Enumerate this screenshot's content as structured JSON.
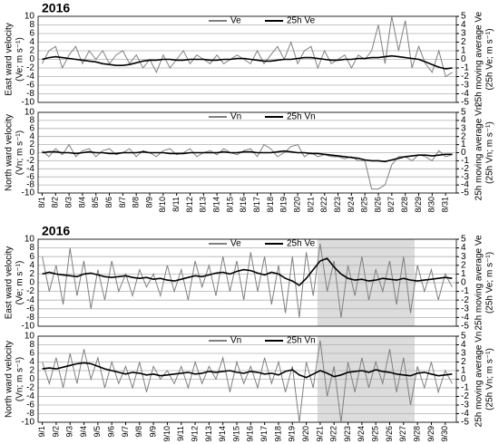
{
  "chart_data": [
    {
      "type": "line",
      "title": "2016",
      "legend": "top",
      "grid": true,
      "y_label": [
        "East ward velocity",
        "(Ve; m s⁻¹)"
      ],
      "y2_label": [
        "25h moving average Ve",
        "(25h Ve; m s⁻¹)"
      ],
      "x": [
        1,
        1.5,
        2,
        2.5,
        3,
        3.5,
        4,
        4.5,
        5,
        5.5,
        6,
        6.5,
        7,
        7.5,
        8,
        8.5,
        9,
        9.5,
        10,
        10.5,
        11,
        11.5,
        12,
        12.5,
        13,
        13.5,
        14,
        14.5,
        15,
        15.5,
        16,
        16.5,
        17,
        17.5,
        18,
        18.5,
        19,
        19.5,
        20,
        20.5,
        21,
        21.5,
        22,
        22.5,
        23,
        23.5,
        24,
        24.5,
        25,
        25.5,
        26,
        26.5,
        27,
        27.5,
        28,
        28.5,
        29,
        29.5,
        30,
        30.5,
        31,
        31.5
      ],
      "xlim": [
        0.7,
        31.8
      ],
      "ylim": [
        -10,
        10
      ],
      "yticks": [
        -10,
        -8,
        -6,
        -4,
        -2,
        0,
        2,
        4,
        6,
        8,
        10
      ],
      "y2lim": [
        -5,
        5
      ],
      "y2ticks": [
        -5,
        -4,
        -3,
        -2,
        -1,
        0,
        1,
        2,
        3,
        4,
        5
      ],
      "series": [
        {
          "name": "Ve",
          "color": "#808080",
          "values": [
            -1,
            2,
            3,
            -2,
            1,
            3,
            -1,
            2,
            0,
            2,
            -1,
            1,
            2,
            -1,
            1,
            -2,
            0,
            -3,
            1,
            -2,
            0,
            2,
            -1,
            1,
            0,
            -1,
            1,
            -1,
            0,
            1,
            0,
            -1,
            2,
            -1,
            1,
            3,
            0,
            4,
            -1,
            2,
            3,
            -2,
            2,
            -1,
            0,
            1,
            -2,
            1,
            0,
            2,
            8,
            -1,
            10,
            2,
            9,
            -2,
            3,
            -1,
            -3,
            2,
            -4,
            -3
          ]
        },
        {
          "name": "25h Ve",
          "color": "#000000",
          "axis": "y2",
          "values": [
            0,
            0.2,
            0.3,
            0.2,
            0.1,
            0,
            -0.1,
            -0.2,
            -0.3,
            -0.5,
            -0.6,
            -0.7,
            -0.7,
            -0.6,
            -0.4,
            -0.2,
            -0.1,
            -0.1,
            0,
            0,
            -0.1,
            -0.1,
            0,
            0,
            0,
            -0.1,
            -0.1,
            0,
            0,
            0.1,
            0.1,
            0,
            -0.1,
            -0.2,
            -0.2,
            -0.1,
            0,
            0,
            0.1,
            0.2,
            0.2,
            0.1,
            0,
            -0.1,
            -0.1,
            0,
            0,
            0.1,
            0.1,
            0.2,
            0.2,
            0.3,
            0.4,
            0.3,
            0.2,
            0.1,
            0,
            -0.3,
            -0.6,
            -0.9,
            -1.1,
            -1.0
          ]
        }
      ]
    },
    {
      "type": "line",
      "legend": "top",
      "grid": true,
      "y_label": [
        "North ward velocity",
        "(Vn; m s⁻¹)"
      ],
      "y2_label": [
        "25h moving average Vn",
        "(25h Vn; m s⁻¹)"
      ],
      "x": [
        1,
        1.5,
        2,
        2.5,
        3,
        3.5,
        4,
        4.5,
        5,
        5.5,
        6,
        6.5,
        7,
        7.5,
        8,
        8.5,
        9,
        9.5,
        10,
        10.5,
        11,
        11.5,
        12,
        12.5,
        13,
        13.5,
        14,
        14.5,
        15,
        15.5,
        16,
        16.5,
        17,
        17.5,
        18,
        18.5,
        19,
        19.5,
        20,
        20.5,
        21,
        21.5,
        22,
        22.5,
        23,
        23.5,
        24,
        24.5,
        25,
        25.5,
        26,
        26.5,
        27,
        27.5,
        28,
        28.5,
        29,
        29.5,
        30,
        30.5,
        31,
        31.5
      ],
      "xlim": [
        0.7,
        31.8
      ],
      "ylim": [
        -10,
        10
      ],
      "yticks": [
        -10,
        -8,
        -6,
        -4,
        -2,
        0,
        2,
        4,
        6,
        8,
        10
      ],
      "y2lim": [
        -5,
        5
      ],
      "y2ticks": [
        -5,
        -4,
        -3,
        -2,
        -1,
        0,
        1,
        2,
        3,
        4,
        5
      ],
      "xticks": [
        {
          "value": 1,
          "label": "8/1"
        },
        {
          "value": 2,
          "label": "8/2"
        },
        {
          "value": 3,
          "label": "8/3"
        },
        {
          "value": 4,
          "label": "8/4"
        },
        {
          "value": 5,
          "label": "8/5"
        },
        {
          "value": 6,
          "label": "8/6"
        },
        {
          "value": 7,
          "label": "8/7"
        },
        {
          "value": 8,
          "label": "8/8"
        },
        {
          "value": 9,
          "label": "8/9"
        },
        {
          "value": 10,
          "label": "8/10"
        },
        {
          "value": 11,
          "label": "8/11"
        },
        {
          "value": 12,
          "label": "8/12"
        },
        {
          "value": 13,
          "label": "8/13"
        },
        {
          "value": 14,
          "label": "8/14"
        },
        {
          "value": 15,
          "label": "8/15"
        },
        {
          "value": 16,
          "label": "8/16"
        },
        {
          "value": 17,
          "label": "8/17"
        },
        {
          "value": 18,
          "label": "8/18"
        },
        {
          "value": 19,
          "label": "8/19"
        },
        {
          "value": 20,
          "label": "8/20"
        },
        {
          "value": 21,
          "label": "8/21"
        },
        {
          "value": 22,
          "label": "8/22"
        },
        {
          "value": 23,
          "label": "8/23"
        },
        {
          "value": 24,
          "label": "8/24"
        },
        {
          "value": 25,
          "label": "8/25"
        },
        {
          "value": 26,
          "label": "8/26"
        },
        {
          "value": 27,
          "label": "8/27"
        },
        {
          "value": 28,
          "label": "8/28"
        },
        {
          "value": 29,
          "label": "8/29"
        },
        {
          "value": 30,
          "label": "8/30"
        },
        {
          "value": 31,
          "label": "8/31"
        }
      ],
      "series": [
        {
          "name": "Vn",
          "color": "#808080",
          "values": [
            0.5,
            -1,
            1,
            -0.5,
            2,
            -1,
            0.5,
            1,
            -1,
            0.5,
            1,
            -0.5,
            0,
            1,
            -1,
            0.5,
            0,
            -1,
            0.5,
            1,
            -0.5,
            0,
            1,
            -1,
            0,
            0.5,
            -0.5,
            1,
            0,
            -0.5,
            0.5,
            1,
            -1,
            2,
            1,
            -1,
            0,
            1.5,
            2,
            -1,
            0,
            -1,
            -0.5,
            -1,
            -1,
            -1.5,
            -1,
            -2,
            -2,
            -9,
            -9,
            -8,
            -3,
            -1,
            -1,
            -2,
            -0.5,
            -1,
            -2,
            0.5,
            -1,
            -0.5
          ]
        },
        {
          "name": "25h Vn",
          "color": "#000000",
          "axis": "y2",
          "values": [
            0,
            0.1,
            0.1,
            0,
            0,
            -0.1,
            0,
            0.1,
            0,
            0,
            -0.1,
            -0.1,
            0,
            0,
            0,
            0.1,
            0,
            0,
            0,
            -0.1,
            -0.1,
            -0.1,
            0,
            0,
            0,
            0,
            0,
            0.1,
            0,
            0,
            0.1,
            0.1,
            0,
            0,
            0,
            0.1,
            0.2,
            0.1,
            0,
            0,
            -0.1,
            -0.1,
            -0.2,
            -0.3,
            -0.4,
            -0.5,
            -0.6,
            -0.7,
            -0.9,
            -1.0,
            -1.0,
            -1.1,
            -0.9,
            -0.7,
            -0.5,
            -0.4,
            -0.3,
            -0.3,
            -0.4,
            -0.3,
            -0.2,
            -0.2
          ]
        }
      ]
    },
    {
      "type": "line",
      "title": "2016",
      "legend": "top",
      "grid": true,
      "highlight": [
        20.8,
        27.8
      ],
      "y_label": [
        "East ward velocity",
        "(Ve; m s⁻¹)"
      ],
      "y2_label": [
        "25h moving average Ve",
        "(25h Ve; m s⁻¹)"
      ],
      "x": [
        1,
        1.5,
        2,
        2.5,
        3,
        3.5,
        4,
        4.5,
        5,
        5.5,
        6,
        6.5,
        7,
        7.5,
        8,
        8.5,
        9,
        9.5,
        10,
        10.5,
        11,
        11.5,
        12,
        12.5,
        13,
        13.5,
        14,
        14.5,
        15,
        15.5,
        16,
        16.5,
        17,
        17.5,
        18,
        18.5,
        19,
        19.5,
        20,
        20.5,
        21,
        21.5,
        22,
        22.5,
        23,
        23.5,
        24,
        24.5,
        25,
        25.5,
        26,
        26.5,
        27,
        27.5,
        28,
        28.5,
        29,
        29.5,
        30,
        30.5
      ],
      "xlim": [
        0.7,
        30.8
      ],
      "ylim": [
        -10,
        10
      ],
      "yticks": [
        -10,
        -8,
        -6,
        -4,
        -2,
        0,
        2,
        4,
        6,
        8,
        10
      ],
      "y2lim": [
        -5,
        5
      ],
      "y2ticks": [
        -5,
        -4,
        -3,
        -2,
        -1,
        0,
        1,
        2,
        3,
        4,
        5
      ],
      "series": [
        {
          "name": "Ve",
          "color": "#808080",
          "values": [
            6,
            -2,
            4,
            -5,
            8,
            -3,
            5,
            -6,
            3,
            -4,
            5,
            -2,
            2,
            -3,
            3,
            -1,
            2,
            -3,
            4,
            -2,
            3,
            -4,
            5,
            -1,
            4,
            -3,
            6,
            -2,
            5,
            -4,
            7,
            -2,
            6,
            -5,
            4,
            -7,
            6,
            -8,
            7,
            -3,
            9,
            -2,
            5,
            -8,
            4,
            -3,
            6,
            -4,
            3,
            -2,
            5,
            -5,
            6,
            -7,
            4,
            -2,
            3,
            -4,
            2,
            -1
          ]
        },
        {
          "name": "25h Ve",
          "color": "#000000",
          "axis": "y2",
          "values": [
            1.0,
            1.2,
            1.0,
            0.9,
            0.8,
            0.7,
            1.0,
            1.1,
            0.9,
            0.7,
            0.6,
            0.7,
            0.8,
            0.6,
            0.5,
            0.6,
            0.4,
            0.5,
            0.3,
            0.2,
            0.4,
            0.6,
            0.8,
            0.7,
            0.9,
            1.1,
            1.2,
            1.0,
            1.3,
            1.5,
            1.4,
            1.1,
            0.9,
            1.2,
            1.0,
            0.5,
            0.2,
            -0.3,
            0.5,
            1.5,
            2.5,
            2.8,
            1.8,
            1.0,
            0.5,
            0.3,
            0.4,
            0.2,
            0.3,
            0.5,
            0.4,
            0.3,
            0.5,
            0.3,
            0.2,
            0.3,
            0.4,
            0.5,
            0.6,
            0.5
          ]
        }
      ]
    },
    {
      "type": "line",
      "legend": "top",
      "grid": true,
      "highlight": [
        20.8,
        27.8
      ],
      "y_label": [
        "North ward velocity",
        "(Vn; m s⁻¹)"
      ],
      "y2_label": [
        "25h moving average Vn",
        "(25h Vn; m s⁻¹)"
      ],
      "x": [
        1,
        1.5,
        2,
        2.5,
        3,
        3.5,
        4,
        4.5,
        5,
        5.5,
        6,
        6.5,
        7,
        7.5,
        8,
        8.5,
        9,
        9.5,
        10,
        10.5,
        11,
        11.5,
        12,
        12.5,
        13,
        13.5,
        14,
        14.5,
        15,
        15.5,
        16,
        16.5,
        17,
        17.5,
        18,
        18.5,
        19,
        19.5,
        20,
        20.5,
        21,
        21.5,
        22,
        22.5,
        23,
        23.5,
        24,
        24.5,
        25,
        25.5,
        26,
        26.5,
        27,
        27.5,
        28,
        28.5,
        29,
        29.5,
        30,
        30.5
      ],
      "xlim": [
        0.7,
        30.8
      ],
      "ylim": [
        -10,
        10
      ],
      "yticks": [
        -10,
        -8,
        -6,
        -4,
        -2,
        0,
        2,
        4,
        6,
        8,
        10
      ],
      "y2lim": [
        -5,
        5
      ],
      "y2ticks": [
        -5,
        -4,
        -3,
        -2,
        -1,
        0,
        1,
        2,
        3,
        4,
        5
      ],
      "xticks": [
        {
          "value": 1,
          "label": "9/1"
        },
        {
          "value": 2,
          "label": "9/2"
        },
        {
          "value": 3,
          "label": "9/3"
        },
        {
          "value": 4,
          "label": "9/4"
        },
        {
          "value": 5,
          "label": "9/5"
        },
        {
          "value": 6,
          "label": "9/6"
        },
        {
          "value": 7,
          "label": "9/7"
        },
        {
          "value": 8,
          "label": "9/8"
        },
        {
          "value": 9,
          "label": "9/9"
        },
        {
          "value": 10,
          "label": "9/10"
        },
        {
          "value": 11,
          "label": "9/11"
        },
        {
          "value": 12,
          "label": "9/12"
        },
        {
          "value": 13,
          "label": "9/13"
        },
        {
          "value": 14,
          "label": "9/14"
        },
        {
          "value": 15,
          "label": "9/15"
        },
        {
          "value": 16,
          "label": "9/16"
        },
        {
          "value": 17,
          "label": "9/17"
        },
        {
          "value": 18,
          "label": "9/18"
        },
        {
          "value": 19,
          "label": "9/19"
        },
        {
          "value": 20,
          "label": "9/20"
        },
        {
          "value": 21,
          "label": "9/21"
        },
        {
          "value": 22,
          "label": "9/22"
        },
        {
          "value": 23,
          "label": "9/23"
        },
        {
          "value": 24,
          "label": "9/24"
        },
        {
          "value": 25,
          "label": "9/25"
        },
        {
          "value": 26,
          "label": "9/26"
        },
        {
          "value": 27,
          "label": "9/27"
        },
        {
          "value": 28,
          "label": "9/28"
        },
        {
          "value": 29,
          "label": "9/29"
        },
        {
          "value": 30,
          "label": "9/30"
        }
      ],
      "series": [
        {
          "name": "Vn",
          "color": "#808080",
          "values": [
            4,
            -1,
            5,
            -2,
            6,
            -1,
            7,
            0,
            5,
            -2,
            4,
            -1,
            3,
            -2,
            4,
            -3,
            3,
            0,
            2,
            -1,
            3,
            -2,
            4,
            -1,
            3,
            0,
            5,
            -3,
            4,
            -1,
            3,
            -2,
            5,
            -1,
            4,
            -3,
            3,
            -10,
            4,
            -2,
            9,
            -4,
            3,
            -10,
            4,
            -3,
            5,
            -2,
            4,
            -1,
            7,
            -3,
            5,
            -6,
            3,
            -2,
            4,
            -3,
            2,
            -1
          ]
        },
        {
          "name": "25h Vn",
          "color": "#000000",
          "axis": "y2",
          "values": [
            1.2,
            1.3,
            1.2,
            1.4,
            1.6,
            1.8,
            1.9,
            1.8,
            1.5,
            1.2,
            1.0,
            0.8,
            0.6,
            0.8,
            0.7,
            0.5,
            0.6,
            0.4,
            0.5,
            0.6,
            0.7,
            0.8,
            0.6,
            0.7,
            0.9,
            0.8,
            0.9,
            1.0,
            0.8,
            0.7,
            0.9,
            0.8,
            0.6,
            0.7,
            0.5,
            0.9,
            1.1,
            0.5,
            0.2,
            0.6,
            1.0,
            0.7,
            0.3,
            0.5,
            0.8,
            0.9,
            1.0,
            0.8,
            1.1,
            0.9,
            0.8,
            0.6,
            0.5,
            0.4,
            0.7,
            0.8,
            0.6,
            0.4,
            0.5,
            0.6
          ]
        }
      ]
    }
  ]
}
